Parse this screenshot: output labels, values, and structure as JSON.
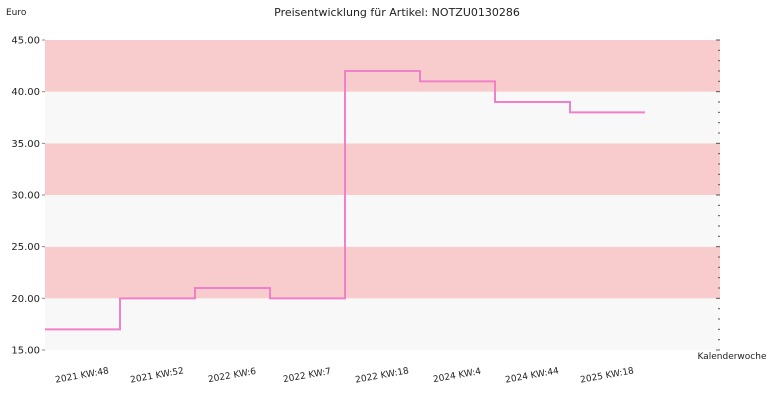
{
  "chart_data": {
    "type": "line",
    "step": true,
    "title": "Preisentwicklung für Artikel: NOTZU0130286",
    "ylabel": "Euro",
    "xlabel": "Kalenderwoche",
    "ylim": [
      15,
      45
    ],
    "yticks": [
      15,
      20,
      25,
      30,
      35,
      40,
      45
    ],
    "ytick_labels": [
      "15.00",
      "20.00",
      "25.00",
      "30.00",
      "35.00",
      "40.00",
      "45.00"
    ],
    "categories": [
      "2021 KW:48",
      "2021 KW:52",
      "2022 KW:6",
      "2022 KW:7",
      "2022 KW:18",
      "2024 KW:4",
      "2024 KW:44",
      "2025 KW:18"
    ],
    "series": [
      {
        "values": [
          17,
          20,
          21,
          20,
          42,
          41,
          39,
          38
        ]
      }
    ],
    "band_colors": [
      "#f8f8f8",
      "#f8cccc"
    ],
    "line_color": "#f080c8"
  }
}
